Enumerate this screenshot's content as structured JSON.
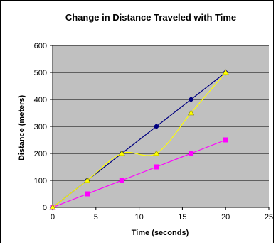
{
  "chart_data": {
    "type": "line",
    "title": "Change in Distance Traveled with Time",
    "xlabel": "Time (seconds)",
    "ylabel": "Distance (meters)",
    "xlim": [
      0,
      25
    ],
    "ylim": [
      0,
      600
    ],
    "x_ticks": [
      "0",
      "5",
      "10",
      "15",
      "20",
      "25"
    ],
    "y_ticks": [
      "0",
      "100",
      "200",
      "300",
      "400",
      "500",
      "600"
    ],
    "grid": "horizontal",
    "plot_background": "#c0c0c0",
    "series": [
      {
        "color": "#000080",
        "marker": "diamond",
        "smooth": false,
        "points": [
          [
            0,
            0
          ],
          [
            4,
            100
          ],
          [
            8,
            200
          ],
          [
            12,
            300
          ],
          [
            16,
            400
          ],
          [
            20,
            500
          ]
        ]
      },
      {
        "color": "#ff00ff",
        "marker": "square",
        "smooth": false,
        "points": [
          [
            0,
            0
          ],
          [
            4,
            50
          ],
          [
            8,
            100
          ],
          [
            12,
            150
          ],
          [
            16,
            200
          ],
          [
            20,
            250
          ]
        ]
      },
      {
        "color": "#ffff00",
        "marker": "triangle",
        "smooth": true,
        "points": [
          [
            0,
            0
          ],
          [
            4,
            100
          ],
          [
            8,
            200
          ],
          [
            12,
            200
          ],
          [
            16,
            350
          ],
          [
            20,
            500
          ]
        ]
      }
    ]
  }
}
